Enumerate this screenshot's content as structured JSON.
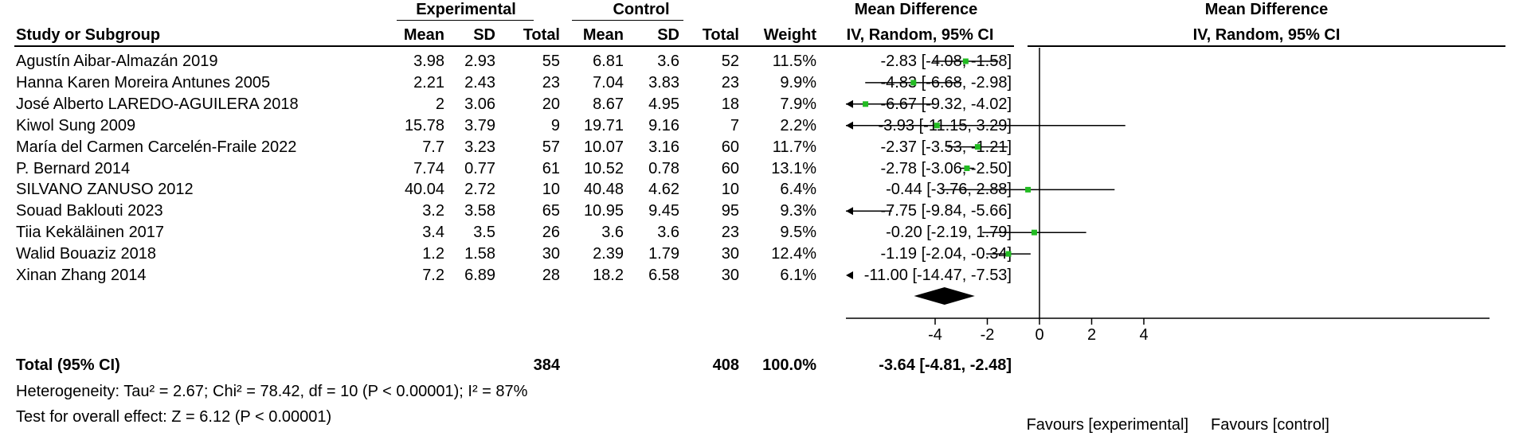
{
  "header": {
    "experimental": "Experimental",
    "control": "Control",
    "md_top": "Mean Difference",
    "md_sub": "IV, Random, 95% CI",
    "plot_top": "Mean Difference",
    "plot_sub": "IV, Random, 95% CI",
    "study": "Study or Subgroup",
    "mean": "Mean",
    "sd": "SD",
    "total": "Total",
    "weight": "Weight"
  },
  "studies": [
    {
      "name": "Agustín Aibar-Almazán  2019",
      "e_mean": "3.98",
      "e_sd": "2.93",
      "e_total": "55",
      "c_mean": "6.81",
      "c_sd": "3.6",
      "c_total": "52",
      "weight": "11.5%",
      "ci": "-2.83 [-4.08, -1.58]"
    },
    {
      "name": "Hanna Karen Moreira Antunes 2005",
      "e_mean": "2.21",
      "e_sd": "2.43",
      "e_total": "23",
      "c_mean": "7.04",
      "c_sd": "3.83",
      "c_total": "23",
      "weight": "9.9%",
      "ci": "-4.83 [-6.68, -2.98]"
    },
    {
      "name": "José Alberto LAREDO-AGUILERA  2018",
      "e_mean": "2",
      "e_sd": "3.06",
      "e_total": "20",
      "c_mean": "8.67",
      "c_sd": "4.95",
      "c_total": "18",
      "weight": "7.9%",
      "ci": "-6.67 [-9.32, -4.02]"
    },
    {
      "name": "Kiwol Sung  2009",
      "e_mean": "15.78",
      "e_sd": "3.79",
      "e_total": "9",
      "c_mean": "19.71",
      "c_sd": "9.16",
      "c_total": "7",
      "weight": "2.2%",
      "ci": "-3.93 [-11.15, 3.29]"
    },
    {
      "name": "María del Carmen Carcelén-Fraile  2022",
      "e_mean": "7.7",
      "e_sd": "3.23",
      "e_total": "57",
      "c_mean": "10.07",
      "c_sd": "3.16",
      "c_total": "60",
      "weight": "11.7%",
      "ci": "-2.37 [-3.53, -1.21]"
    },
    {
      "name": "P. Bernard  2014",
      "e_mean": "7.74",
      "e_sd": "0.77",
      "e_total": "61",
      "c_mean": "10.52",
      "c_sd": "0.78",
      "c_total": "60",
      "weight": "13.1%",
      "ci": "-2.78 [-3.06, -2.50]"
    },
    {
      "name": "SILVANO ZANUSO  2012",
      "e_mean": "40.04",
      "e_sd": "2.72",
      "e_total": "10",
      "c_mean": "40.48",
      "c_sd": "4.62",
      "c_total": "10",
      "weight": "6.4%",
      "ci": "-0.44 [-3.76, 2.88]"
    },
    {
      "name": "Souad Baklouti  2023",
      "e_mean": "3.2",
      "e_sd": "3.58",
      "e_total": "65",
      "c_mean": "10.95",
      "c_sd": "9.45",
      "c_total": "95",
      "weight": "9.3%",
      "ci": "-7.75 [-9.84, -5.66]"
    },
    {
      "name": "Tiia Kekäläinen  2017",
      "e_mean": "3.4",
      "e_sd": "3.5",
      "e_total": "26",
      "c_mean": "3.6",
      "c_sd": "3.6",
      "c_total": "23",
      "weight": "9.5%",
      "ci": "-0.20 [-2.19, 1.79]"
    },
    {
      "name": "Walid Bouaziz  2018",
      "e_mean": "1.2",
      "e_sd": "1.58",
      "e_total": "30",
      "c_mean": "2.39",
      "c_sd": "1.79",
      "c_total": "30",
      "weight": "12.4%",
      "ci": "-1.19 [-2.04, -0.34]"
    },
    {
      "name": "Xinan Zhang  2014",
      "e_mean": "7.2",
      "e_sd": "6.89",
      "e_total": "28",
      "c_mean": "18.2",
      "c_sd": "6.58",
      "c_total": "30",
      "weight": "6.1%",
      "ci": "-11.00 [-14.47, -7.53]"
    }
  ],
  "total": {
    "label": "Total (95% CI)",
    "e_total": "384",
    "c_total": "408",
    "weight": "100.0%",
    "ci": "-3.64 [-4.81, -2.48]"
  },
  "heterogeneity": "Heterogeneity: Tau² = 2.67; Chi² = 78.42, df = 10 (P < 0.00001); I² = 87%",
  "overall_effect": "Test for overall effect: Z = 6.12 (P < 0.00001)",
  "favours_left": "Favours [experimental]",
  "favours_right": "Favours [control]",
  "colors": {
    "marker": "#22bb22",
    "line": "#000000"
  },
  "chart_data": {
    "type": "forest",
    "xlim": [
      -10,
      10
    ],
    "xticks": [
      -4,
      -2,
      0,
      2,
      4
    ],
    "xtick_labels": [
      "-4",
      "-2",
      "0",
      "2",
      "4"
    ],
    "points": [
      {
        "md": -2.83,
        "lo": -4.08,
        "hi": -1.58
      },
      {
        "md": -4.83,
        "lo": -6.68,
        "hi": -2.98
      },
      {
        "md": -6.67,
        "lo": -9.32,
        "hi": -4.02
      },
      {
        "md": -3.93,
        "lo": -11.15,
        "hi": 3.29
      },
      {
        "md": -2.37,
        "lo": -3.53,
        "hi": -1.21
      },
      {
        "md": -2.78,
        "lo": -3.06,
        "hi": -2.5
      },
      {
        "md": -0.44,
        "lo": -3.76,
        "hi": 2.88
      },
      {
        "md": -7.75,
        "lo": -9.84,
        "hi": -5.66
      },
      {
        "md": -0.2,
        "lo": -2.19,
        "hi": 1.79
      },
      {
        "md": -1.19,
        "lo": -2.04,
        "hi": -0.34
      },
      {
        "md": -11.0,
        "lo": -14.47,
        "hi": -7.53
      }
    ],
    "summary": {
      "md": -3.64,
      "lo": -4.81,
      "hi": -2.48
    }
  }
}
